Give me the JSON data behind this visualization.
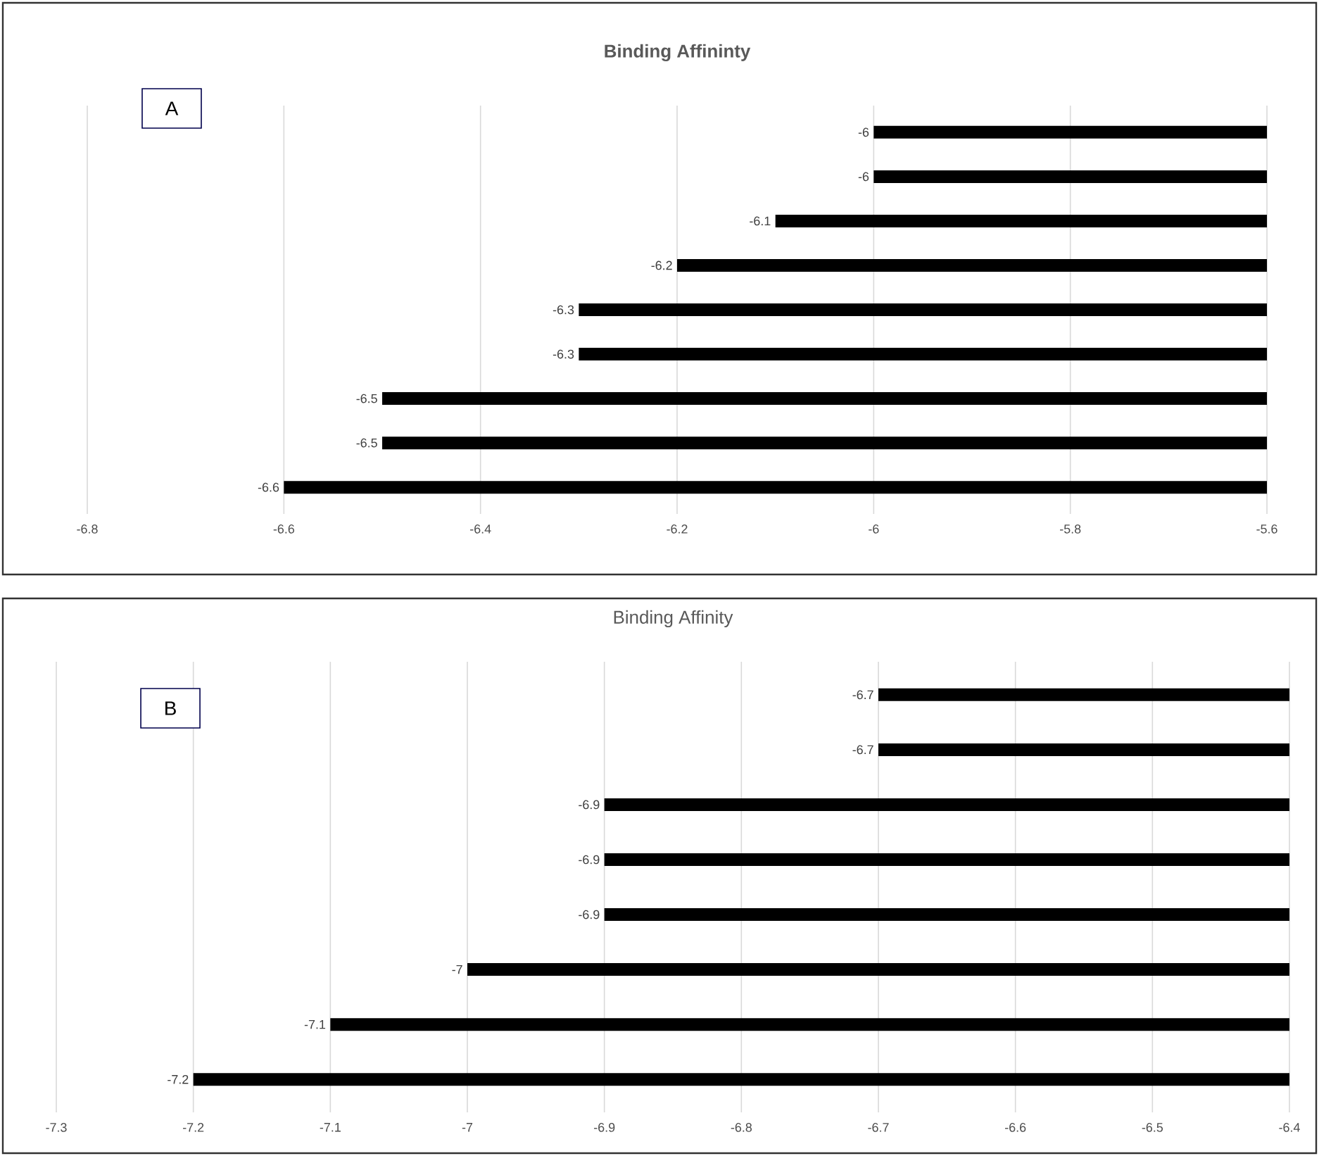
{
  "chart_data": [
    {
      "type": "bar",
      "orientation": "horizontal",
      "title": "Binding Affininty",
      "categories": [
        null,
        null,
        null,
        null,
        null,
        null,
        null,
        null,
        null
      ],
      "values": [
        -6,
        -6,
        -6.1,
        -6.2,
        -6.3,
        -6.3,
        -6.5,
        -6.5,
        -6.6
      ],
      "color": "#000000",
      "xlim": [
        -6.8,
        -5.6
      ],
      "xticks": [
        -6.8,
        -6.6,
        -6.4,
        -6.2,
        -6,
        -5.8,
        -5.6
      ],
      "grid": "x",
      "data_labels": true,
      "annotations": [
        "A"
      ]
    },
    {
      "type": "bar",
      "orientation": "horizontal",
      "title": "Binding Affinity",
      "categories": [
        null,
        null,
        null,
        null,
        null,
        null,
        null,
        null
      ],
      "values": [
        -6.7,
        -6.7,
        -6.9,
        -6.9,
        -6.9,
        -7,
        -7.1,
        -7.2
      ],
      "color": "#000000",
      "xlim": [
        -7.3,
        -6.4
      ],
      "xticks": [
        -7.3,
        -7.2,
        -7.1,
        -7,
        -6.9,
        -6.8,
        -6.7,
        -6.6,
        -6.5,
        -6.4
      ],
      "grid": "x",
      "data_labels": true,
      "annotations": [
        "B"
      ]
    }
  ]
}
